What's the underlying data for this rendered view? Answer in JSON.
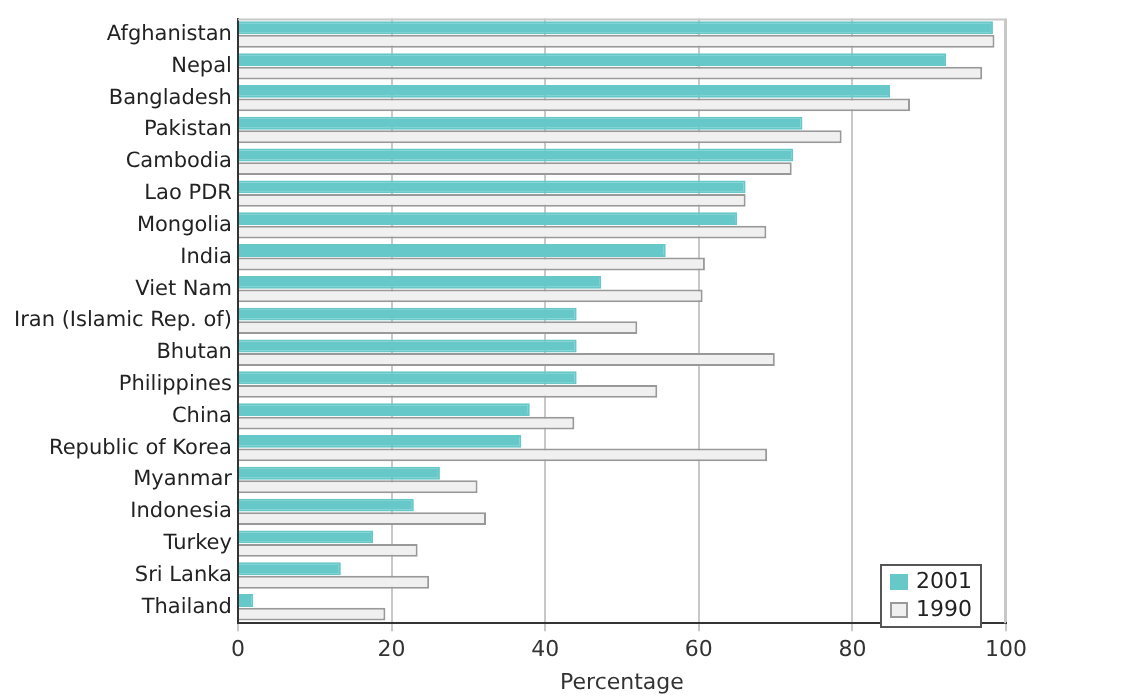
{
  "chart_data": {
    "type": "bar",
    "orientation": "horizontal",
    "xlabel": "Percentage",
    "categories": [
      "Afghanistan",
      "Nepal",
      "Bangladesh",
      "Pakistan",
      "Cambodia",
      "Lao PDR",
      "Mongolia",
      "India",
      "Viet Nam",
      "Iran (Islamic Rep. of)",
      "Bhutan",
      "Philippines",
      "China",
      "Republic of Korea",
      "Myanmar",
      "Indonesia",
      "Turkey",
      "Sri Lanka",
      "Thailand"
    ],
    "series": [
      {
        "name": "2001",
        "color": "#66c8c8",
        "values": [
          98.3,
          92.2,
          84.9,
          73.5,
          72.3,
          66.1,
          65,
          55.7,
          47.3,
          44.1,
          44.1,
          44.1,
          38,
          36.9,
          26.3,
          22.9,
          17.6,
          13.4,
          2
        ]
      },
      {
        "name": "1990",
        "color": "#f0f0f0",
        "values": [
          98.5,
          96.9,
          87.5,
          78.6,
          72.1,
          66.1,
          68.8,
          60.8,
          60.5,
          52,
          69.9,
          54.6,
          43.8,
          68.9,
          31.2,
          32.3,
          23.4,
          24.9,
          19.2
        ]
      }
    ],
    "xlim": [
      0,
      100
    ],
    "xticks": [
      0,
      20,
      40,
      60,
      80,
      100
    ],
    "grid": "x",
    "legend": "bottom right"
  }
}
